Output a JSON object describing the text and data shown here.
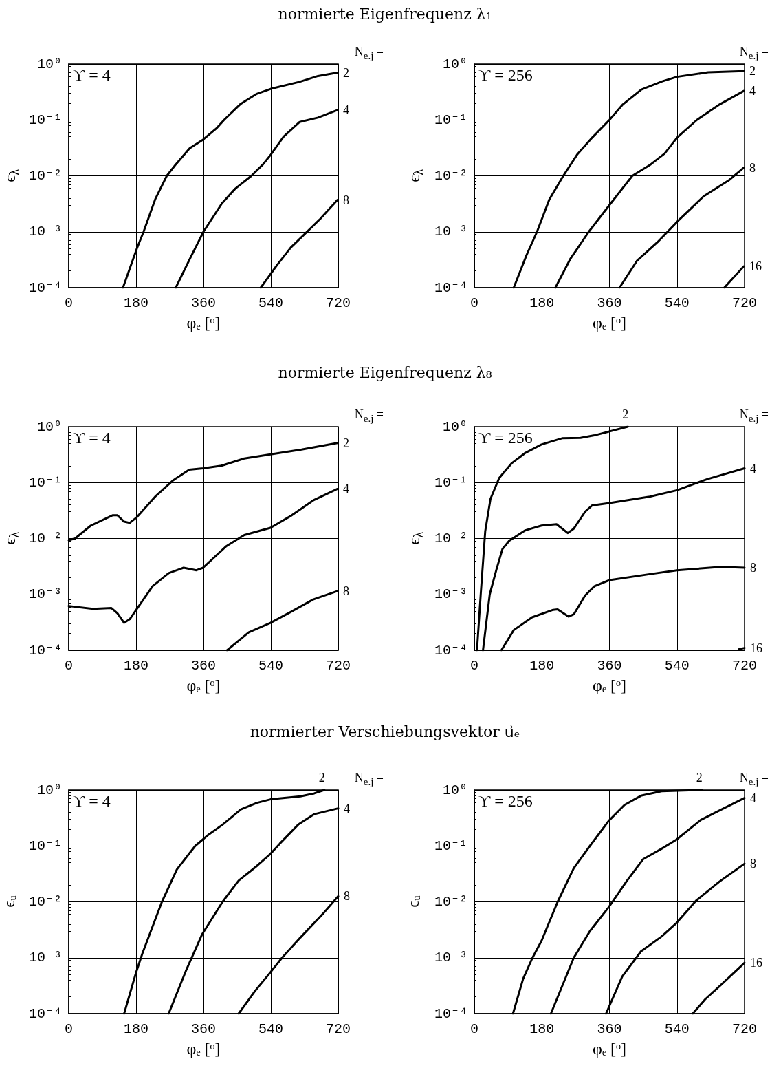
{
  "chart_data": [
    {
      "type": "line",
      "title": "normierte Eigenfrequenz λ₁",
      "xlabel": "φₑ [ᵒ]",
      "ylabel": "ϵ$_{λ}$",
      "annotations": [
        "ϒ = 4",
        "N$_{e.j}$ ="
      ],
      "log": "y",
      "grid": true,
      "legend": false,
      "marker": "none",
      "line_style": "solid",
      "xlim": [
        0,
        720
      ],
      "xticks": [
        0,
        180,
        360,
        540,
        720
      ],
      "ylim": [
        0.0001,
        1
      ],
      "yticks": [
        {
          "value": 1,
          "label": "10⁰"
        },
        {
          "value": 0.1,
          "label": "10⁻¹"
        },
        {
          "value": 0.01,
          "label": "10⁻²"
        },
        {
          "value": 0.001,
          "label": "10⁻³"
        },
        {
          "value": 0.0001,
          "label": "10⁻⁴"
        }
      ],
      "series": [
        {
          "name": "2",
          "color": "#000000",
          "x": [
            145,
            182,
            200,
            231,
            262,
            286,
            323,
            360,
            396,
            415,
            458,
            501,
            540,
            617,
            666,
            718
          ],
          "values": [
            0.0001,
            0.0005,
            0.001,
            0.0038,
            0.01,
            0.016,
            0.031,
            0.045,
            0.072,
            0.1,
            0.19,
            0.29,
            0.36,
            0.48,
            0.61,
            0.7
          ]
        },
        {
          "name": "4",
          "color": "#000000",
          "x": [
            286,
            323,
            360,
            409,
            445,
            488,
            519,
            540,
            574,
            617,
            666,
            718
          ],
          "values": [
            0.0001,
            0.00032,
            0.001,
            0.0032,
            0.0059,
            0.01,
            0.016,
            0.024,
            0.05,
            0.092,
            0.11,
            0.15
          ]
        },
        {
          "name": "8",
          "color": "#000000",
          "x": [
            513,
            556,
            593,
            629,
            672,
            718
          ],
          "values": [
            0.0001,
            0.00025,
            0.00052,
            0.00089,
            0.0017,
            0.0037
          ]
        }
      ]
    },
    {
      "type": "line",
      "xlabel": "φₑ [ᵒ]",
      "ylabel": "ϵ$_{λ}$",
      "annotations": [
        "ϒ = 256",
        "N$_{e.j}$ ="
      ],
      "log": "y",
      "grid": true,
      "legend": false,
      "marker": "none",
      "line_style": "solid",
      "xlim": [
        0,
        720
      ],
      "xticks": [
        0,
        180,
        360,
        540,
        720
      ],
      "ylim": [
        0.0001,
        1
      ],
      "yticks": [
        {
          "value": 1,
          "label": "10⁰"
        },
        {
          "value": 0.1,
          "label": "10⁻¹"
        },
        {
          "value": 0.01,
          "label": "10⁻²"
        },
        {
          "value": 0.001,
          "label": "10⁻³"
        },
        {
          "value": 0.0001,
          "label": "10⁻⁴"
        }
      ],
      "series": [
        {
          "name": "2",
          "color": "#000000",
          "x": [
            105,
            139,
            167,
            200,
            237,
            274,
            311,
            360,
            396,
            445,
            501,
            540,
            623,
            718
          ],
          "values": [
            0.0001,
            0.00038,
            0.001,
            0.0038,
            0.01,
            0.024,
            0.046,
            0.1,
            0.19,
            0.35,
            0.49,
            0.59,
            0.71,
            0.75
          ]
        },
        {
          "name": "4",
          "color": "#000000",
          "x": [
            216,
            255,
            305,
            360,
            421,
            470,
            507,
            540,
            593,
            654,
            718
          ],
          "values": [
            0.0001,
            0.00032,
            0.001,
            0.003,
            0.01,
            0.016,
            0.025,
            0.048,
            0.1,
            0.19,
            0.33
          ]
        },
        {
          "name": "8",
          "color": "#000000",
          "x": [
            387,
            433,
            488,
            540,
            611,
            678,
            718
          ],
          "values": [
            0.0001,
            0.0003,
            0.00065,
            0.0015,
            0.0043,
            0.0083,
            0.014
          ]
        },
        {
          "name": "16",
          "color": "#000000",
          "x": [
            666,
            718
          ],
          "values": [
            0.0001,
            0.00024
          ]
        }
      ]
    },
    {
      "type": "line",
      "title": "normierte Eigenfrequenz λ₈",
      "xlabel": "φₑ [ᵒ]",
      "ylabel": "ϵ$_{λ}$",
      "annotations": [
        "ϒ = 4",
        "N$_{e.j}$ ="
      ],
      "log": "y",
      "grid": true,
      "legend": false,
      "marker": "none",
      "line_style": "solid",
      "xlim": [
        0,
        720
      ],
      "xticks": [
        0,
        180,
        360,
        540,
        720
      ],
      "ylim": [
        0.0001,
        1
      ],
      "yticks": [
        {
          "value": 1,
          "label": "10⁰"
        },
        {
          "value": 0.1,
          "label": "10⁻¹"
        },
        {
          "value": 0.01,
          "label": "10⁻²"
        },
        {
          "value": 0.001,
          "label": "10⁻³"
        },
        {
          "value": 0.0001,
          "label": "10⁻⁴"
        }
      ],
      "series": [
        {
          "name": "2",
          "color": "#000000",
          "x": [
            0,
            17,
            59,
            117,
            130,
            148,
            163,
            182,
            231,
            279,
            322,
            359,
            408,
            469,
            539,
            622,
            718
          ],
          "values": [
            0.0093,
            0.01,
            0.017,
            0.026,
            0.026,
            0.02,
            0.019,
            0.024,
            0.056,
            0.11,
            0.17,
            0.18,
            0.2,
            0.27,
            0.32,
            0.39,
            0.51
          ]
        },
        {
          "name": "4",
          "color": "#000000",
          "x": [
            0,
            65,
            114,
            130,
            148,
            163,
            182,
            224,
            267,
            307,
            341,
            359,
            420,
            469,
            539,
            592,
            653,
            718
          ],
          "values": [
            0.00062,
            0.00055,
            0.00057,
            0.00046,
            0.00031,
            0.00036,
            0.00055,
            0.0014,
            0.0024,
            0.003,
            0.0027,
            0.003,
            0.0072,
            0.0115,
            0.0155,
            0.025,
            0.048,
            0.077
          ]
        },
        {
          "name": "8",
          "color": "#000000",
          "x": [
            423,
            481,
            539,
            592,
            653,
            718
          ],
          "values": [
            0.0001,
            0.00021,
            0.00031,
            0.00048,
            0.00081,
            0.00115
          ]
        }
      ]
    },
    {
      "type": "line",
      "xlabel": "φₑ [ᵒ]",
      "ylabel": "ϵ$_{λ}$",
      "annotations": [
        "ϒ = 256",
        "N$_{e.j}$ ="
      ],
      "log": "y",
      "grid": true,
      "legend": false,
      "marker": "none",
      "line_style": "solid",
      "xlim": [
        0,
        720
      ],
      "xticks": [
        0,
        180,
        360,
        540,
        720
      ],
      "ylim": [
        0.0001,
        1
      ],
      "yticks": [
        {
          "value": 1,
          "label": "10⁰"
        },
        {
          "value": 0.1,
          "label": "10⁻¹"
        },
        {
          "value": 0.01,
          "label": "10⁻²"
        },
        {
          "value": 0.001,
          "label": "10⁻³"
        },
        {
          "value": 0.0001,
          "label": "10⁻⁴"
        }
      ],
      "series": [
        {
          "name": "2",
          "color": "#000000",
          "x": [
            7,
            17,
            29,
            43,
            66,
            99,
            136,
            179,
            234,
            283,
            320,
            409
          ],
          "values": [
            0.0001,
            0.001,
            0.0135,
            0.051,
            0.12,
            0.22,
            0.34,
            0.48,
            0.62,
            0.63,
            0.7,
            1
          ]
        },
        {
          "name": "4",
          "color": "#000000",
          "x": [
            23,
            41,
            59,
            75,
            93,
            136,
            179,
            219,
            249,
            265,
            295,
            314,
            360,
            467,
            540,
            620,
            720
          ],
          "values": [
            0.0001,
            0.001,
            0.0028,
            0.0065,
            0.0091,
            0.014,
            0.017,
            0.018,
            0.0125,
            0.015,
            0.03,
            0.039,
            0.043,
            0.056,
            0.073,
            0.115,
            0.18
          ]
        },
        {
          "name": "8",
          "color": "#000000",
          "x": [
            72,
            105,
            154,
            210,
            222,
            251,
            265,
            295,
            320,
            360,
            467,
            540,
            657,
            720
          ],
          "values": [
            0.0001,
            0.00023,
            0.00039,
            0.00053,
            0.00054,
            0.0004,
            0.00044,
            0.00095,
            0.0014,
            0.0018,
            0.0023,
            0.0027,
            0.0031,
            0.003
          ]
        },
        {
          "name": "16",
          "color": "#000000",
          "x": [
            706,
            720
          ],
          "values": [
            0.000105,
            0.00011
          ]
        }
      ]
    },
    {
      "type": "line",
      "title": "normierter Verschiebungsvektor u⃗ₑ",
      "xlabel": "φₑ [ᵒ]",
      "ylabel": "ϵᵤ",
      "annotations": [
        "ϒ = 4",
        "N$_{e.j}$ ="
      ],
      "log": "y",
      "grid": true,
      "legend": false,
      "marker": "none",
      "line_style": "solid",
      "xlim": [
        0,
        720
      ],
      "xticks": [
        0,
        180,
        360,
        540,
        720
      ],
      "ylim": [
        0.0001,
        1
      ],
      "yticks": [
        {
          "value": 1,
          "label": "10⁰"
        },
        {
          "value": 0.1,
          "label": "10⁻¹"
        },
        {
          "value": 0.01,
          "label": "10⁻²"
        },
        {
          "value": 0.001,
          "label": "10⁻³"
        },
        {
          "value": 0.0001,
          "label": "10⁻⁴"
        }
      ],
      "series": [
        {
          "name": "2",
          "color": "#000000",
          "x": [
            148,
            179,
            197,
            249,
            289,
            338,
            374,
            411,
            460,
            503,
            539,
            619,
            656,
            683
          ],
          "values": [
            0.0001,
            0.00052,
            0.0012,
            0.01,
            0.038,
            0.1,
            0.16,
            0.24,
            0.45,
            0.59,
            0.68,
            0.77,
            0.87,
            1
          ]
        },
        {
          "name": "4",
          "color": "#000000",
          "x": [
            267,
            313,
            356,
            411,
            454,
            503,
            539,
            564,
            613,
            656,
            720
          ],
          "values": [
            0.0001,
            0.00058,
            0.0026,
            0.01,
            0.024,
            0.044,
            0.072,
            0.11,
            0.24,
            0.37,
            0.47
          ]
        },
        {
          "name": "8",
          "color": "#000000",
          "x": [
            454,
            497,
            539,
            570,
            619,
            680,
            720
          ],
          "values": [
            0.0001,
            0.00025,
            0.00055,
            0.001,
            0.0023,
            0.0062,
            0.0126
          ]
        }
      ]
    },
    {
      "type": "line",
      "xlabel": "φₑ [ᵒ]",
      "ylabel": "ϵᵤ",
      "annotations": [
        "ϒ = 256",
        "N$_{e.j}$ ="
      ],
      "log": "y",
      "grid": true,
      "legend": false,
      "marker": "none",
      "line_style": "solid",
      "xlim": [
        0,
        720
      ],
      "xticks": [
        0,
        180,
        360,
        540,
        720
      ],
      "ylim": [
        0.0001,
        1
      ],
      "yticks": [
        {
          "value": 1,
          "label": "10⁰"
        },
        {
          "value": 0.1,
          "label": "10⁻¹"
        },
        {
          "value": 0.01,
          "label": "10⁻²"
        },
        {
          "value": 0.001,
          "label": "10⁻³"
        },
        {
          "value": 0.0001,
          "label": "10⁻⁴"
        }
      ],
      "series": [
        {
          "name": "2",
          "color": "#000000",
          "x": [
            103,
            130,
            155,
            179,
            222,
            265,
            308,
            358,
            400,
            444,
            499,
            606
          ],
          "values": [
            0.0001,
            0.00042,
            0.001,
            0.002,
            0.01,
            0.04,
            0.1,
            0.28,
            0.54,
            0.79,
            0.95,
            1
          ]
        },
        {
          "name": "4",
          "color": "#000000",
          "x": [
            204,
            265,
            308,
            358,
            407,
            450,
            499,
            539,
            603,
            659,
            720
          ],
          "values": [
            0.0001,
            0.001,
            0.003,
            0.008,
            0.024,
            0.058,
            0.089,
            0.13,
            0.29,
            0.45,
            0.72
          ]
        },
        {
          "name": "8",
          "color": "#000000",
          "x": [
            351,
            394,
            444,
            499,
            539,
            591,
            653,
            720
          ],
          "values": [
            0.0001,
            0.00046,
            0.0013,
            0.0024,
            0.0042,
            0.0105,
            0.023,
            0.048
          ]
        },
        {
          "name": "16",
          "color": "#000000",
          "x": [
            582,
            615,
            658,
            720
          ],
          "values": [
            0.0001,
            0.00018,
            0.00033,
            0.00081
          ]
        }
      ]
    }
  ]
}
